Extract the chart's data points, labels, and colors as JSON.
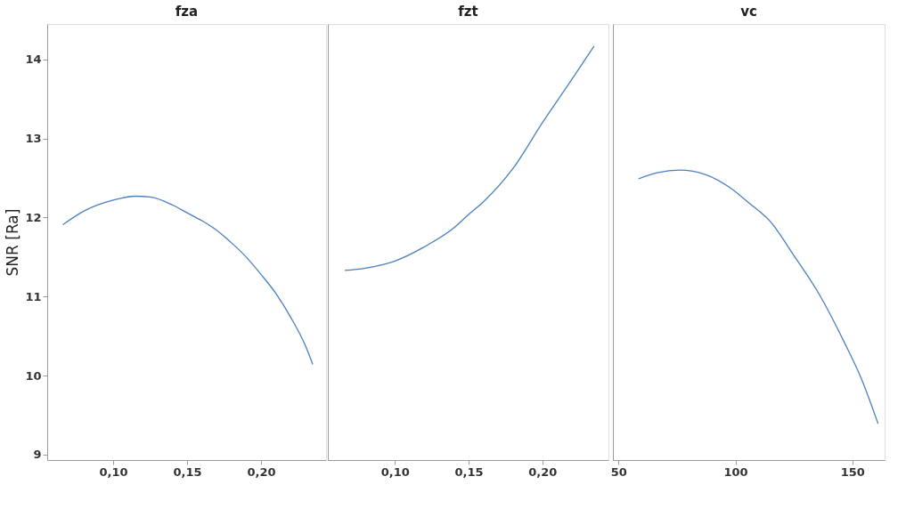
{
  "chart_data": [
    {
      "type": "line",
      "title": "fza",
      "ylabel": "SNR [Ra]",
      "grid": false,
      "x": [
        0.066,
        0.08,
        0.1,
        0.115,
        0.125,
        0.14,
        0.15,
        0.16,
        0.17,
        0.18,
        0.19,
        0.2,
        0.21,
        0.22,
        0.23,
        0.235
      ],
      "series": [
        {
          "color": "#4a7fc1",
          "values": [
            11.91,
            12.08,
            12.22,
            12.27,
            12.26,
            12.16,
            12.06,
            11.96,
            11.84,
            11.68,
            11.5,
            11.28,
            11.04,
            10.74,
            10.38,
            10.14
          ]
        }
      ],
      "xlim": [
        0.0554,
        0.244
      ],
      "xticks": [
        {
          "value": 0.1,
          "label": "0,10"
        },
        {
          "value": 0.15,
          "label": "0,15"
        },
        {
          "value": 0.2,
          "label": "0,20"
        }
      ],
      "ylim": [
        8.93,
        14.45
      ],
      "yticks": [
        9,
        10,
        11,
        12,
        13,
        14
      ]
    },
    {
      "type": "line",
      "title": "fzt",
      "grid": false,
      "tick_labels": "x",
      "x": [
        0.066,
        0.08,
        0.1,
        0.12,
        0.14,
        0.15,
        0.16,
        0.18,
        0.2,
        0.22,
        0.235
      ],
      "series": [
        {
          "color": "#4a7fc1",
          "values": [
            11.33,
            11.36,
            11.45,
            11.63,
            11.87,
            12.04,
            12.2,
            12.62,
            13.2,
            13.75,
            14.17
          ]
        }
      ],
      "xlim": [
        0.0545,
        0.2448
      ],
      "xticks": [
        {
          "value": 0.1,
          "label": "0,10"
        },
        {
          "value": 0.15,
          "label": "0,15"
        },
        {
          "value": 0.2,
          "label": "0,20"
        }
      ],
      "ylim": [
        8.93,
        14.45
      ],
      "yticks": [
        9,
        10,
        11,
        12,
        13,
        14
      ]
    },
    {
      "type": "line",
      "title": "vc",
      "grid": false,
      "tick_labels": "x",
      "x": [
        58.5,
        67,
        76,
        87.6,
        97.6,
        106,
        114.9,
        125,
        135,
        146.4,
        154,
        161
      ],
      "series": [
        {
          "color": "#4a7fc1",
          "values": [
            12.49,
            12.57,
            12.6,
            12.54,
            12.38,
            12.18,
            11.95,
            11.52,
            11.07,
            10.43,
            9.95,
            9.39
          ]
        }
      ],
      "xlim": [
        47.6,
        163.8
      ],
      "xticks": [
        50,
        100,
        150
      ],
      "ylim": [
        8.93,
        14.45
      ],
      "yticks": [
        9,
        10,
        11,
        12,
        13,
        14
      ]
    }
  ]
}
